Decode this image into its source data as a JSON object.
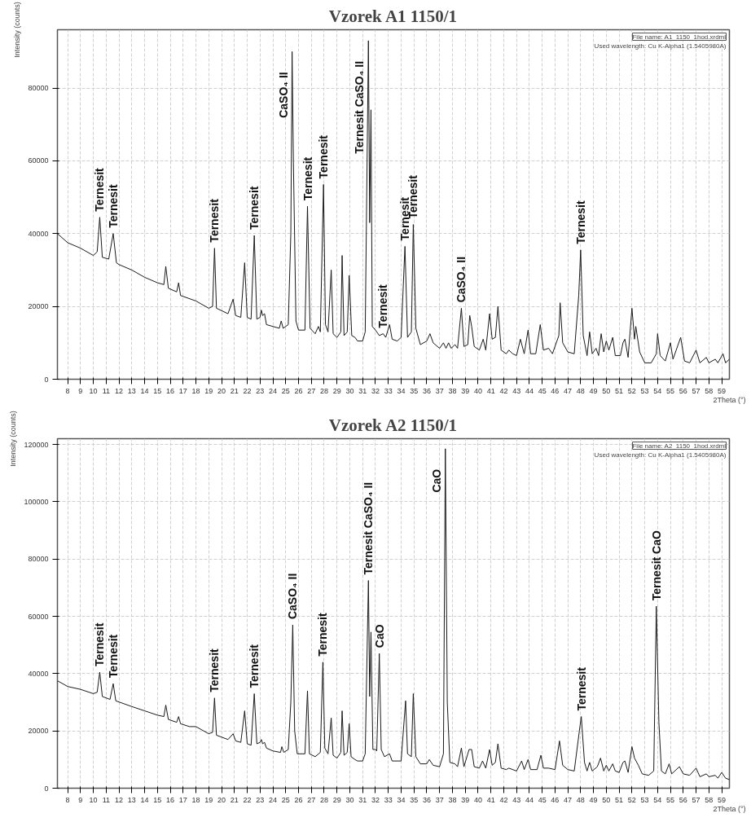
{
  "chart_data": [
    {
      "type": "line",
      "title": "Vzorek A1 1150/1",
      "xlabel": "2Theta (°)",
      "ylabel": "Intensity (counts)",
      "color": "#1a1a1a",
      "grid": true,
      "line_style": "solid",
      "marker": "none",
      "xlim": [
        7.2,
        59.6
      ],
      "ylim": [
        0,
        96000
      ],
      "yticks": [
        0,
        20000,
        40000,
        60000,
        80000
      ],
      "xticks": [
        8,
        9,
        10,
        11,
        12,
        13,
        14,
        15,
        16,
        17,
        18,
        19,
        20,
        21,
        22,
        23,
        24,
        25,
        26,
        27,
        28,
        29,
        30,
        31,
        32,
        33,
        34,
        35,
        36,
        37,
        38,
        39,
        40,
        41,
        42,
        43,
        44,
        45,
        46,
        47,
        48,
        49,
        50,
        51,
        52,
        53,
        54,
        55,
        56,
        57,
        58,
        59
      ],
      "x": [
        7.2,
        8,
        9,
        10,
        10.3,
        10.5,
        10.7,
        11.2,
        11.55,
        11.8,
        12,
        13,
        14,
        15,
        15.5,
        15.65,
        15.85,
        16.5,
        16.65,
        16.8,
        18,
        19,
        19.3,
        19.45,
        19.6,
        20.5,
        20.9,
        21.1,
        21.5,
        21.8,
        22,
        22.3,
        22.55,
        22.75,
        23,
        23.1,
        23.2,
        23.35,
        23.5,
        24,
        24.5,
        24.65,
        24.8,
        25.2,
        25.4,
        25.5,
        25.6,
        25.8,
        26,
        26.5,
        26.7,
        26.9,
        27.3,
        27.55,
        27.7,
        27.95,
        28.1,
        28.3,
        28.55,
        28.7,
        29,
        29.3,
        29.4,
        29.55,
        29.8,
        29.95,
        30.15,
        30.4,
        30.6,
        31,
        31.2,
        31.45,
        31.55,
        31.65,
        31.75,
        32,
        32.3,
        32.6,
        32.8,
        33.1,
        33.3,
        33.7,
        34,
        34.3,
        34.5,
        34.8,
        34.95,
        35.15,
        35.5,
        36,
        36.25,
        36.5,
        37,
        37.3,
        37.5,
        37.7,
        37.9,
        38.2,
        38.4,
        38.7,
        38.9,
        39.2,
        39.35,
        39.5,
        39.7,
        40.1,
        40.4,
        40.6,
        40.9,
        41.1,
        41.35,
        41.55,
        41.8,
        42.2,
        42.4,
        42.7,
        43,
        43.3,
        43.6,
        43.9,
        44.1,
        44.5,
        44.85,
        45.1,
        45.5,
        45.8,
        46.3,
        46.4,
        46.6,
        47,
        47.5,
        47.85,
        48,
        48.2,
        48.5,
        48.7,
        48.9,
        49.2,
        49.4,
        49.6,
        49.8,
        50,
        50.2,
        50.5,
        50.7,
        51.1,
        51.3,
        51.45,
        51.7,
        52,
        52.2,
        52.3,
        52.6,
        53,
        53.5,
        53.9,
        54,
        54.2,
        54.6,
        55,
        55.2,
        55.8,
        56.1,
        56.5,
        57,
        57.3,
        57.8,
        58,
        58.5,
        58.7,
        59.1,
        59.3,
        59.6
      ],
      "values": [
        40000,
        37500,
        36000,
        34000,
        35000,
        44500,
        33500,
        33000,
        40000,
        32000,
        31500,
        30000,
        28000,
        26500,
        26000,
        31000,
        25000,
        24000,
        26500,
        23000,
        21500,
        19500,
        20000,
        36000,
        19500,
        18000,
        22000,
        17500,
        17000,
        32000,
        17000,
        16500,
        39500,
        16500,
        17000,
        19000,
        17500,
        18000,
        15000,
        14500,
        14000,
        16000,
        14000,
        15000,
        40000,
        90000,
        60000,
        16000,
        13500,
        13500,
        47500,
        14000,
        12500,
        14500,
        13000,
        53500,
        15000,
        13000,
        30000,
        12500,
        11500,
        13000,
        34000,
        12000,
        13000,
        28500,
        12000,
        11500,
        10500,
        10500,
        13000,
        93000,
        43000,
        74000,
        14500,
        13500,
        12000,
        12500,
        11500,
        15000,
        11000,
        10500,
        11500,
        36500,
        11500,
        13000,
        42500,
        14000,
        9500,
        10500,
        12500,
        10000,
        8500,
        10000,
        8500,
        10000,
        8500,
        9500,
        8500,
        19500,
        9000,
        9500,
        17500,
        14500,
        9000,
        8000,
        11000,
        8000,
        18000,
        11000,
        11500,
        20000,
        8000,
        7000,
        8000,
        7000,
        6500,
        11000,
        7000,
        13500,
        7000,
        7000,
        15000,
        8000,
        8500,
        7000,
        12000,
        21000,
        10000,
        7500,
        7000,
        23000,
        35500,
        12000,
        6500,
        13000,
        7000,
        8500,
        6500,
        12500,
        7500,
        10500,
        8000,
        11500,
        6500,
        6500,
        10000,
        11000,
        6000,
        19500,
        11000,
        14500,
        7500,
        4500,
        4500,
        7000,
        12500,
        6500,
        5000,
        10000,
        5500,
        11500,
        5000,
        4500,
        8000,
        4500,
        6000,
        4500,
        5500,
        4500,
        7000,
        4500,
        5500
      ],
      "annotations": [
        {
          "text": "Ternesit",
          "x": 10.5,
          "y": 44500
        },
        {
          "text": "Ternesit",
          "x": 11.55,
          "y": 40000
        },
        {
          "text": "Ternesit",
          "x": 19.45,
          "y": 36000
        },
        {
          "text": "Ternesit",
          "x": 22.55,
          "y": 39500
        },
        {
          "text": "CaSO₄ II",
          "x": 25.5,
          "y": 90000
        },
        {
          "text": "Ternesit",
          "x": 26.7,
          "y": 47500
        },
        {
          "text": "Ternesit",
          "x": 27.95,
          "y": 53500
        },
        {
          "text": "Ternesit CaSO₄ II",
          "x": 31.45,
          "y": 93000
        },
        {
          "text": "Ternesit",
          "x": 32.6,
          "y": 12500
        },
        {
          "text": "Ternesit",
          "x": 34.3,
          "y": 36500
        },
        {
          "text": "Ternesit",
          "x": 34.95,
          "y": 42500
        },
        {
          "text": "CaSO₄ II",
          "x": 38.7,
          "y": 19500
        },
        {
          "text": "Ternesit",
          "x": 48.0,
          "y": 35500
        },
        "File name: A1_1150_1hod.xrdml",
        "Used wavelength: Cu K-Alpha1 (1.5405980A)"
      ]
    },
    {
      "type": "line",
      "title": "Vzorek A2 1150/1",
      "xlabel": "2Theta (°)",
      "ylabel": "Intensity (counts)",
      "color": "#1a1a1a",
      "grid": true,
      "line_style": "solid",
      "marker": "none",
      "xlim": [
        7.2,
        59.6
      ],
      "ylim": [
        0,
        122000
      ],
      "yticks": [
        0,
        20000,
        40000,
        60000,
        80000,
        100000,
        120000
      ],
      "xticks": [
        8,
        9,
        10,
        11,
        12,
        13,
        14,
        15,
        16,
        17,
        18,
        19,
        20,
        21,
        22,
        23,
        24,
        25,
        26,
        27,
        28,
        29,
        30,
        31,
        32,
        33,
        34,
        35,
        36,
        37,
        38,
        39,
        40,
        41,
        42,
        43,
        44,
        45,
        46,
        47,
        48,
        49,
        50,
        51,
        52,
        53,
        54,
        55,
        56,
        57,
        58,
        59
      ],
      "x": [
        7.2,
        8,
        9,
        10,
        10.3,
        10.5,
        10.7,
        11.3,
        11.55,
        11.75,
        13,
        14,
        15,
        15.5,
        15.65,
        15.85,
        16.5,
        16.65,
        16.8,
        17.5,
        18,
        19,
        19.3,
        19.45,
        19.6,
        20.5,
        20.9,
        21.1,
        21.5,
        21.8,
        22,
        22.3,
        22.55,
        22.75,
        23,
        23.1,
        23.2,
        23.35,
        23.5,
        24,
        24.6,
        24.7,
        24.85,
        25.2,
        25.4,
        25.55,
        25.7,
        25.9,
        26.5,
        26.7,
        26.85,
        27.3,
        27.7,
        27.9,
        28.05,
        28.3,
        28.55,
        28.7,
        29,
        29.3,
        29.4,
        29.55,
        29.8,
        29.95,
        30.1,
        30.4,
        30.6,
        31,
        31.2,
        31.45,
        31.55,
        31.65,
        31.8,
        32,
        32.1,
        32.3,
        32.45,
        32.7,
        33.1,
        33.3,
        34,
        34.35,
        34.5,
        34.8,
        34.95,
        35.15,
        35.5,
        36,
        36.2,
        36.5,
        37,
        37.3,
        37.45,
        37.6,
        37.8,
        38.2,
        38.4,
        38.7,
        38.9,
        39.3,
        39.5,
        39.7,
        40.1,
        40.35,
        40.6,
        40.9,
        41.1,
        41.35,
        41.55,
        41.8,
        42.2,
        42.4,
        43,
        43.4,
        43.6,
        43.9,
        44.1,
        44.6,
        44.9,
        45.1,
        45.5,
        46,
        46.35,
        46.6,
        47,
        47.5,
        47.9,
        48.05,
        48.3,
        48.5,
        48.7,
        48.9,
        49.3,
        49.55,
        49.8,
        50,
        50.2,
        50.5,
        50.7,
        51,
        51.3,
        51.45,
        51.7,
        52,
        52.2,
        52.5,
        52.8,
        53.3,
        53.7,
        53.9,
        54.1,
        54.3,
        54.6,
        54.9,
        55.1,
        55.7,
        56,
        56.5,
        57,
        57.3,
        57.8,
        58,
        58.5,
        58.7,
        59,
        59.3,
        59.6
      ],
      "values": [
        37500,
        35500,
        34500,
        33000,
        33500,
        40500,
        32000,
        31000,
        36500,
        30500,
        28500,
        27000,
        25500,
        25000,
        29000,
        24000,
        23000,
        25000,
        22500,
        21500,
        21500,
        19000,
        19500,
        31500,
        18500,
        17000,
        19000,
        16500,
        16000,
        27000,
        15500,
        15000,
        33000,
        15500,
        16000,
        17000,
        15500,
        16000,
        14000,
        13000,
        12500,
        14500,
        12500,
        13500,
        30000,
        57000,
        20000,
        12000,
        12000,
        34000,
        12000,
        11000,
        12500,
        44000,
        14000,
        12000,
        24500,
        11500,
        10500,
        12500,
        27000,
        11500,
        12500,
        22500,
        11000,
        10000,
        9500,
        9500,
        12000,
        72500,
        32000,
        54500,
        13500,
        13500,
        13000,
        47000,
        13500,
        11000,
        12000,
        9500,
        9500,
        30500,
        12000,
        11000,
        33000,
        11000,
        8500,
        8500,
        10000,
        8000,
        7500,
        12000,
        118500,
        30000,
        9000,
        8500,
        7500,
        14000,
        7500,
        13500,
        13500,
        7500,
        7000,
        9500,
        7000,
        13500,
        8000,
        9000,
        15500,
        7000,
        6500,
        7000,
        6000,
        9500,
        6500,
        10000,
        6500,
        6500,
        11500,
        7000,
        7000,
        6500,
        16500,
        8000,
        6500,
        6000,
        20000,
        25000,
        9000,
        6000,
        9000,
        6000,
        7500,
        10500,
        6000,
        8000,
        6000,
        8500,
        6000,
        5500,
        9000,
        9500,
        5500,
        14500,
        10500,
        8000,
        5000,
        4500,
        6000,
        63500,
        23000,
        6000,
        5000,
        8500,
        5000,
        7500,
        5000,
        4500,
        7000,
        4000,
        5000,
        4000,
        4500,
        3500,
        5500,
        3500,
        3000
      ],
      "annotations": [
        {
          "text": "Ternesit",
          "x": 10.5,
          "y": 40500
        },
        {
          "text": "Ternesit",
          "x": 11.55,
          "y": 36500
        },
        {
          "text": "Ternesit",
          "x": 19.45,
          "y": 31500
        },
        {
          "text": "Ternesit",
          "x": 22.55,
          "y": 33000
        },
        {
          "text": "CaSO₄ II",
          "x": 25.55,
          "y": 57000
        },
        {
          "text": "Ternesit",
          "x": 27.9,
          "y": 44000
        },
        {
          "text": "Ternesit CaSO₄ II",
          "x": 31.45,
          "y": 72500
        },
        {
          "text": "CaO",
          "x": 32.3,
          "y": 47000
        },
        {
          "text": "CaO",
          "x": 37.45,
          "y": 118500
        },
        {
          "text": "Ternesit",
          "x": 48.05,
          "y": 25000
        },
        {
          "text": "Ternesit   CaO",
          "x": 53.9,
          "y": 63500
        },
        "File name: A2_1150_1hod.xrdml",
        "Used wavelength: Cu K-Alpha1 (1.5405980A)"
      ]
    }
  ]
}
